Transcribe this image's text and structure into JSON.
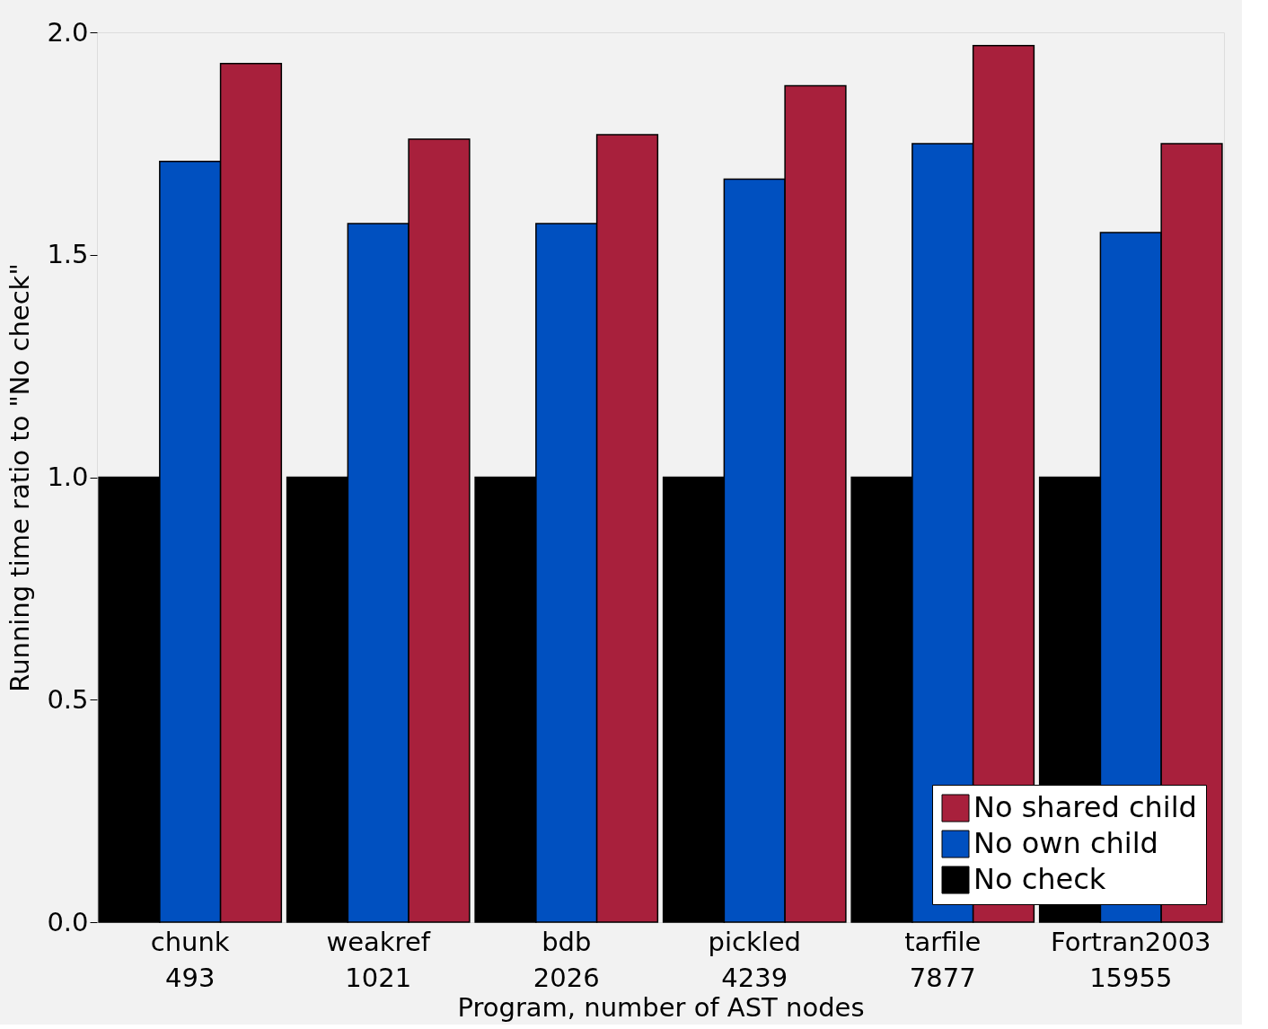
{
  "chart_data": {
    "type": "bar",
    "xlabel": "Program, number of AST nodes",
    "ylabel": "Running time ratio to \"No check\"",
    "categories": [
      "chunk\n493",
      "weakref\n1021",
      "bdb\n2026",
      "pickled\n4239",
      "tarfile\n7877",
      "Fortran2003\n15955"
    ],
    "series": [
      {
        "name": "No check",
        "color": "#000000",
        "values": [
          1.0,
          1.0,
          1.0,
          1.0,
          1.0,
          1.0
        ]
      },
      {
        "name": "No own child",
        "color": "#0050c0",
        "values": [
          1.71,
          1.57,
          1.57,
          1.67,
          1.75,
          1.55
        ]
      },
      {
        "name": "No shared child",
        "color": "#a8203c",
        "values": [
          1.93,
          1.76,
          1.77,
          1.88,
          1.97,
          1.75
        ]
      }
    ],
    "ylim": [
      0,
      2.0
    ],
    "yticks": [
      {
        "value": 0,
        "label": "0.0"
      },
      {
        "value": 0.5,
        "label": "0.5"
      },
      {
        "value": 1.0,
        "label": "1.0"
      },
      {
        "value": 1.5,
        "label": "1.5"
      },
      {
        "value": 2.0,
        "label": "2.0"
      }
    ],
    "grid": false,
    "legend": "bottom right"
  }
}
